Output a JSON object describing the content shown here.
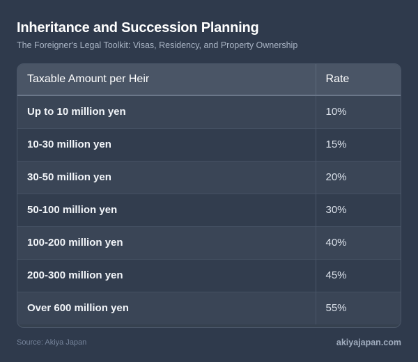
{
  "header": {
    "title": "Inheritance and Succession Planning",
    "subtitle": "The Foreigner's Legal Toolkit: Visas, Residency, and Property Ownership"
  },
  "table": {
    "columns": [
      "Taxable Amount per Heir",
      "Rate"
    ],
    "rows": [
      {
        "amount": "Up to 10 million yen",
        "rate": "10%"
      },
      {
        "amount": "10-30 million yen",
        "rate": "15%"
      },
      {
        "amount": "30-50 million yen",
        "rate": "20%"
      },
      {
        "amount": "50-100 million yen",
        "rate": "30%"
      },
      {
        "amount": "100-200 million yen",
        "rate": "40%"
      },
      {
        "amount": "200-300 million yen",
        "rate": "45%"
      },
      {
        "amount": "Over 600 million yen",
        "rate": "55%"
      }
    ]
  },
  "footer": {
    "source": "Source: Akiya Japan",
    "brand": "akiyajapan.com"
  },
  "colors": {
    "background": "#2f3a4c",
    "header_row": "#4a5566",
    "row_odd": "#3a4556",
    "row_even": "#323d4e"
  }
}
